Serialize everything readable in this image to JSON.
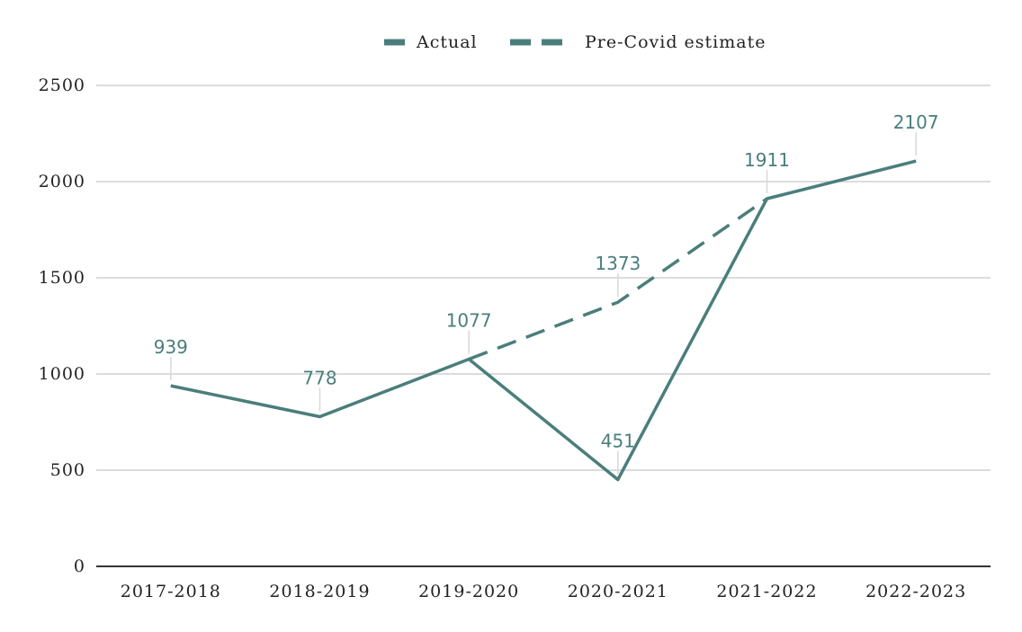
{
  "chart_data": {
    "type": "line",
    "title": "",
    "xlabel": "",
    "ylabel": "",
    "categories": [
      "2017-2018",
      "2018-2019",
      "2019-2020",
      "2020-2021",
      "2021-2022",
      "2022-2023"
    ],
    "ylim": [
      0,
      2500
    ],
    "yticks": [
      0,
      500,
      1000,
      1500,
      2000,
      2500
    ],
    "grid": true,
    "legend_position": "top-center",
    "series": [
      {
        "name": "Actual",
        "style": "solid",
        "color": "#4a7e7b",
        "values": [
          939,
          778,
          1077,
          451,
          1911,
          2107
        ],
        "labels": [
          "939",
          "778",
          "1077",
          "451",
          "1911",
          "2107"
        ]
      },
      {
        "name": "Pre-Covid estimate",
        "style": "dashed",
        "color": "#4a7e7b",
        "values": [
          null,
          null,
          1077,
          1373,
          1911,
          null
        ],
        "labels": [
          null,
          null,
          null,
          "1373",
          null,
          null
        ]
      }
    ]
  }
}
